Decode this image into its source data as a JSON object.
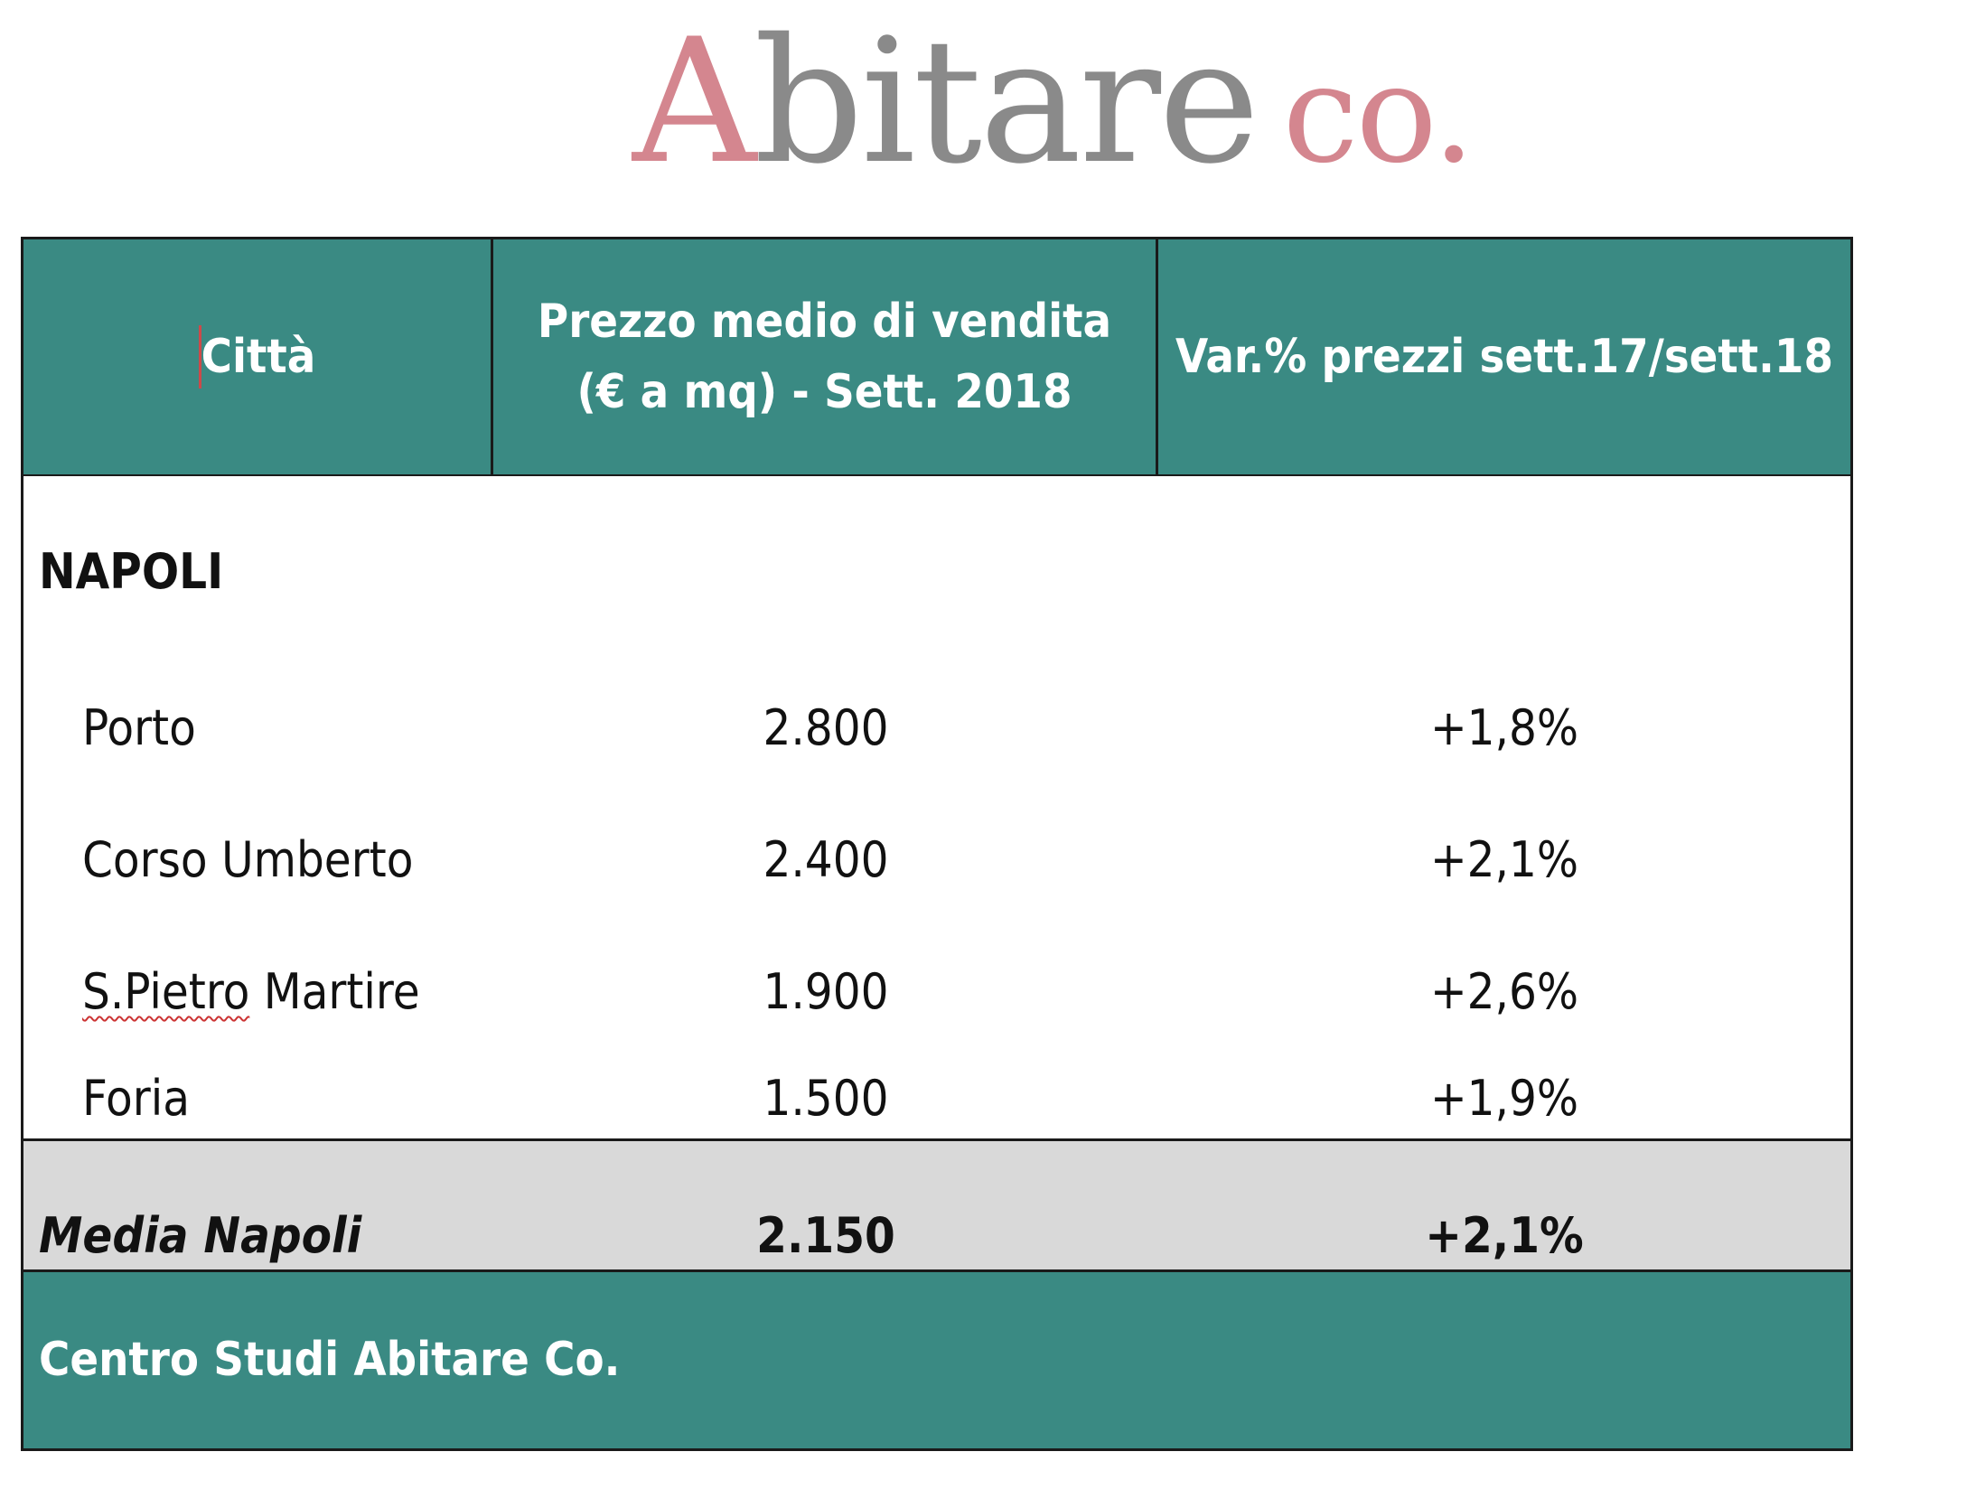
{
  "logo": {
    "a": "A",
    "bitare": "bitare",
    "co": "co",
    "dot": "."
  },
  "table": {
    "headers": {
      "city": "Città",
      "price": "Prezzo medio di vendita (€ a mq) - Sett. 2018",
      "variation": "Var.% prezzi sett.17/sett.18"
    },
    "section": "NAPOLI",
    "rows": [
      {
        "name": "Porto",
        "price": "2.800",
        "variation": "+1,8%"
      },
      {
        "name": "Corso Umberto",
        "price": "2.400",
        "variation": "+2,1%"
      },
      {
        "name": "S.Pietro Martire",
        "name_a": "S.Pietro",
        "name_b": " Martire",
        "price": "1.900",
        "variation": "+2,6%"
      },
      {
        "name": "Foria",
        "price": "1.500",
        "variation": "+1,9%"
      }
    ],
    "average": {
      "name": "Media Napoli",
      "price": "2.150",
      "variation": "+2,1%"
    },
    "source": "Centro Studi Abitare Co."
  },
  "colors": {
    "header_bg": "#3a8a83",
    "average_bg": "#d9d9d9",
    "logo_pink": "#d4868f",
    "logo_gray": "#8a8a8a"
  }
}
